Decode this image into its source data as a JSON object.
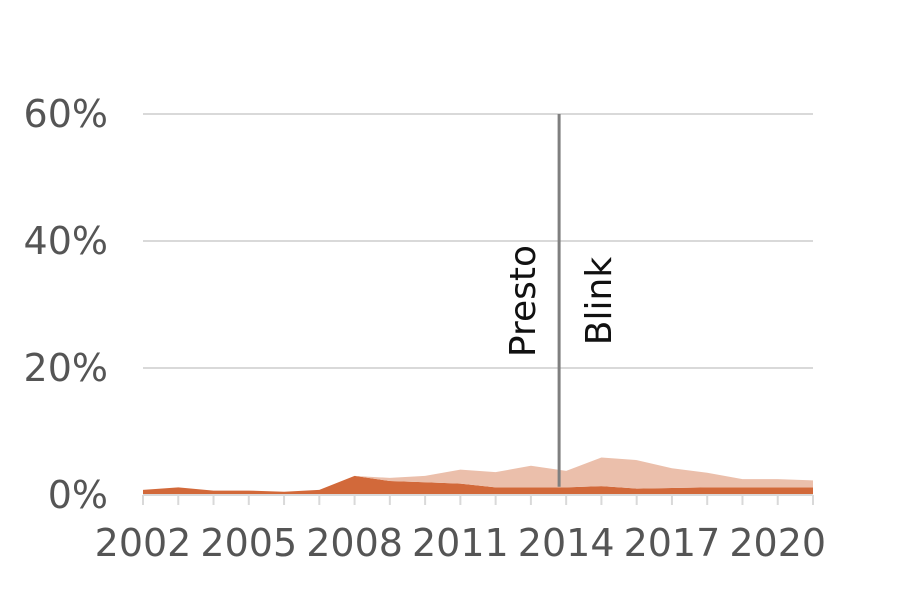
{
  "chart_data": {
    "type": "area",
    "title": "",
    "xlabel": "",
    "ylabel": "",
    "x": [
      2002,
      2003,
      2004,
      2005,
      2006,
      2007,
      2008,
      2009,
      2010,
      2011,
      2012,
      2013,
      2014,
      2015,
      2016,
      2017,
      2018,
      2019,
      2020,
      2021
    ],
    "x_tick_labels": [
      "2002",
      "2005",
      "2008",
      "2011",
      "2014",
      "2017",
      "2020"
    ],
    "y_tick_labels": [
      "0%",
      "20%",
      "40%",
      "60%"
    ],
    "ylim": [
      0,
      60
    ],
    "grid": true,
    "legend": "none",
    "stacked": true,
    "series": [
      {
        "values": [
          0.8,
          1.2,
          0.7,
          0.7,
          0.5,
          0.8,
          3.0,
          2.2,
          2.0,
          1.8,
          1.2,
          1.2,
          1.2,
          1.4,
          1.0,
          1.1,
          1.2,
          1.2,
          1.2,
          1.2
        ],
        "color": "#d2693a"
      },
      {
        "values": [
          0.0,
          0.0,
          0.0,
          0.0,
          0.0,
          0.0,
          0.0,
          0.5,
          1.0,
          2.2,
          2.4,
          3.4,
          2.6,
          4.5,
          4.5,
          3.1,
          2.3,
          1.3,
          1.3,
          1.1
        ],
        "color": "#ebbfab"
      }
    ],
    "annotations": [
      {
        "text": "Presto",
        "side": "left"
      },
      {
        "text": "Blink",
        "side": "right"
      }
    ],
    "marker_x": 2013.8,
    "marker_color": "#7f7f7f",
    "grid_color": "#d9d9d9"
  }
}
